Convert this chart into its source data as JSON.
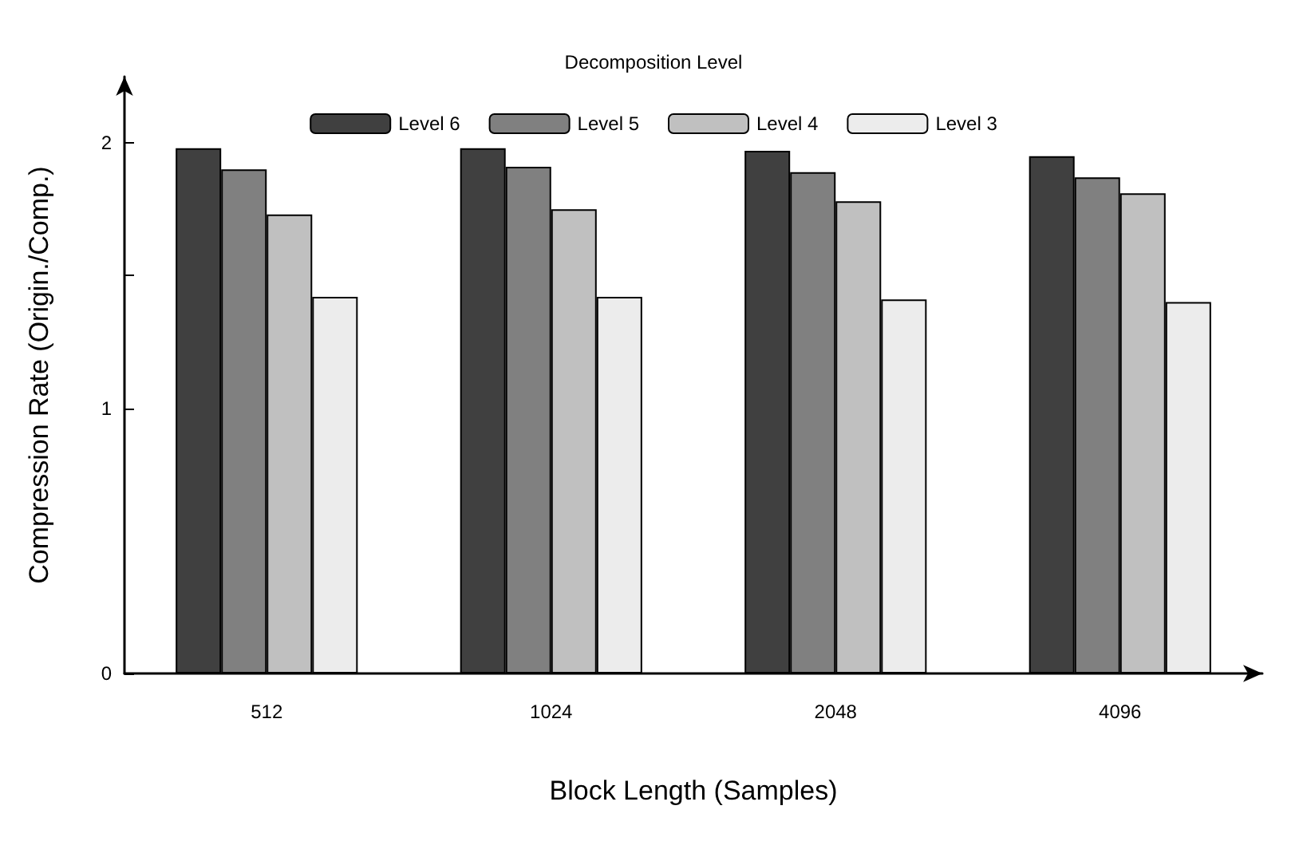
{
  "chart_data": {
    "type": "bar",
    "xlabel": "Block Length (Samples)",
    "ylabel": "Compression Rate (Origin./Comp.)",
    "legend_title": "Decomposition Level",
    "categories": [
      "512",
      "1024",
      "2048",
      "4096"
    ],
    "series": [
      {
        "name": "Level 6",
        "color": "#404040",
        "values": [
          1.98,
          1.98,
          1.97,
          1.95
        ]
      },
      {
        "name": "Level 5",
        "color": "#808080",
        "values": [
          1.9,
          1.91,
          1.89,
          1.87
        ]
      },
      {
        "name": "Level 4",
        "color": "#c0c0c0",
        "values": [
          1.73,
          1.75,
          1.78,
          1.81
        ]
      },
      {
        "name": "Level 3",
        "color": "#ececec",
        "values": [
          1.42,
          1.42,
          1.41,
          1.4
        ]
      }
    ],
    "ylim": [
      0,
      2.25
    ],
    "yticks": [
      0,
      1,
      {
        "value": 1.5,
        "label": null
      },
      2
    ],
    "grid": false,
    "legend": "top"
  }
}
